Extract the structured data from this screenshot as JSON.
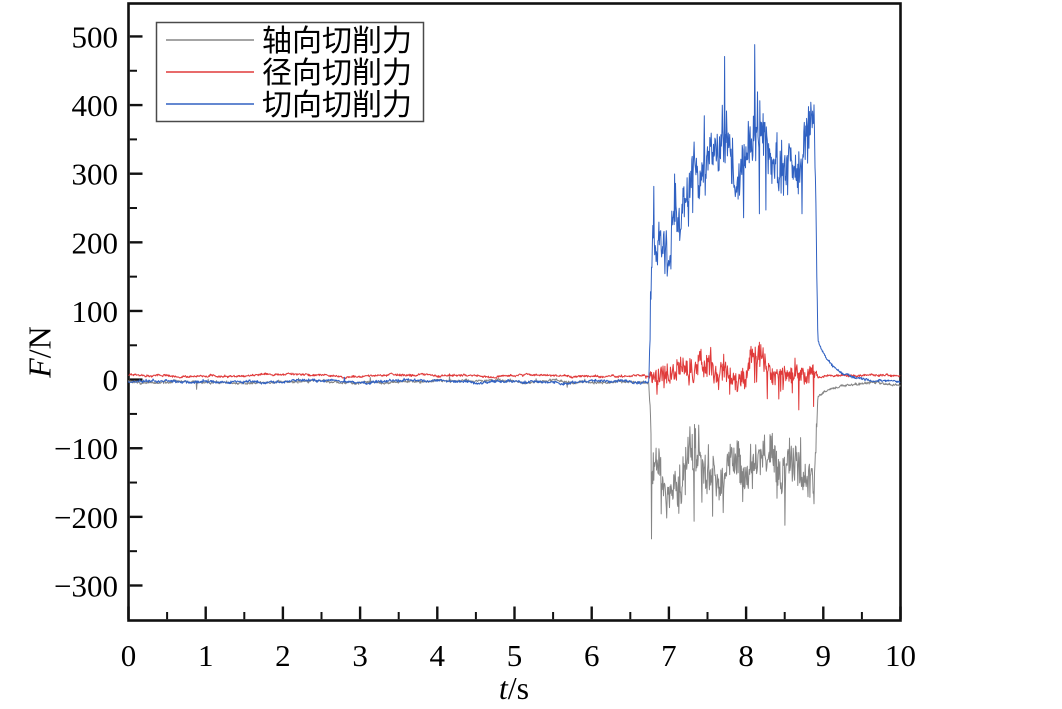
{
  "chart_data": {
    "type": "line",
    "title": "",
    "xlabel_var": "t",
    "xlabel_unit": "/s",
    "ylabel_var": "F",
    "ylabel_unit": "/N",
    "xlim": [
      0,
      10
    ],
    "ylim": [
      -351,
      548
    ],
    "grid": false,
    "legend_position": "top-left",
    "x_major_ticks": [
      0,
      1,
      2,
      3,
      4,
      5,
      6,
      7,
      8,
      9,
      10
    ],
    "x_tick_labels": [
      "0",
      "1",
      "2",
      "3",
      "4",
      "5",
      "6",
      "7",
      "8",
      "9",
      "10"
    ],
    "x_minor_step": 0.5,
    "y_major_ticks": [
      500,
      400,
      300,
      200,
      100,
      0,
      -100,
      -200,
      -300
    ],
    "y_tick_labels": [
      "500",
      "400",
      "300",
      "200",
      "100",
      "0",
      "−100",
      "−200",
      "−300"
    ],
    "y_minor_step": 50,
    "cut_start_s": 6.74,
    "cut_end_s": 8.88,
    "sample_dt_s": 0.006,
    "notable_extremes": {
      "tangential_peak_N": 473,
      "tangential_mean_N": 330,
      "axial_min_N": -303,
      "axial_mean_N": -140,
      "radial_min_N": -100,
      "radial_mean_N": 8
    },
    "series": [
      {
        "name": "轴向切削力",
        "color": "#858585",
        "seed": 1137,
        "segments": [
          {
            "t0": 0,
            "t1": 6.74,
            "mean": -3,
            "noise": 2.2,
            "spikes": [
              [
                0.003,
                -10
              ],
              [
                0.002,
                7
              ]
            ]
          },
          {
            "t0": 6.74,
            "t1": 8.88,
            "mean": -138,
            "noise": 38,
            "spikes": [
              [
                0.03,
                -65
              ],
              [
                0.009,
                -125
              ],
              [
                0.012,
                55
              ]
            ]
          },
          {
            "t0": 8.88,
            "t1": 10,
            "mean": -4,
            "noise": 2.2,
            "spikes": []
          }
        ]
      },
      {
        "name": "径向切削力",
        "color": "#e03a3a",
        "seed": 742,
        "segments": [
          {
            "t0": 0,
            "t1": 6.74,
            "mean": 6,
            "noise": 1.8,
            "spikes": [
              [
                0.003,
                -7
              ]
            ]
          },
          {
            "t0": 6.74,
            "t1": 8.88,
            "mean": 8,
            "noise": 20,
            "spikes": [
              [
                0.04,
                -42
              ],
              [
                0.007,
                -80
              ]
            ]
          },
          {
            "t0": 8.88,
            "t1": 10,
            "mean": 6,
            "noise": 1.8,
            "spikes": []
          }
        ]
      },
      {
        "name": "切向切削力",
        "color": "#3061c2",
        "seed": 99,
        "segments": [
          {
            "t0": 0,
            "t1": 6.74,
            "mean": -3,
            "noise": 2.2,
            "spikes": [
              [
                0.003,
                9
              ]
            ]
          },
          {
            "t0": 6.74,
            "t1": 7.02,
            "mean": 215,
            "noise": 42,
            "spikes": [
              [
                0.02,
                70
              ],
              [
                0.02,
                -70
              ]
            ]
          },
          {
            "t0": 7.02,
            "t1": 7.28,
            "mean": 300,
            "noise": 45,
            "spikes": [
              [
                0.015,
                90
              ],
              [
                0.015,
                -90
              ]
            ]
          },
          {
            "t0": 7.28,
            "t1": 8.88,
            "mean": 332,
            "noise": 46,
            "spikes": [
              [
                0.015,
                120
              ],
              [
                0.015,
                -112
              ]
            ]
          },
          {
            "t0": 8.88,
            "t1": 10,
            "mean": -3,
            "noise": 2.2,
            "spikes": []
          }
        ]
      }
    ]
  }
}
